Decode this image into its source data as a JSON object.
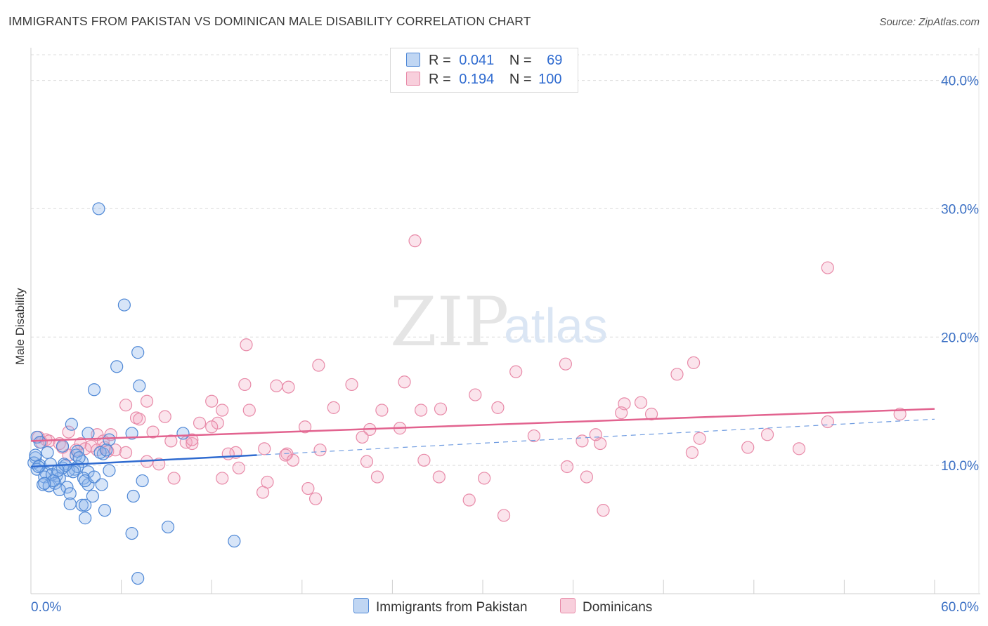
{
  "title": "IMMIGRANTS FROM PAKISTAN VS DOMINICAN MALE DISABILITY CORRELATION CHART",
  "source": "Source: ZipAtlas.com",
  "watermark": {
    "zip": "ZIP",
    "atlas": "atlas"
  },
  "legend": {
    "rows": [
      {
        "r_label": "R =",
        "r_value": "0.041",
        "n_label": "N =",
        "n_value": "69",
        "color": "#8db4ea"
      },
      {
        "r_label": "R =",
        "r_value": "0.194",
        "n_label": "N =",
        "n_value": "100",
        "color": "#f2a7bf"
      }
    ]
  },
  "bottom_legend": [
    {
      "label": "Immigrants from Pakistan",
      "color": "#8db4ea"
    },
    {
      "label": "Dominicans",
      "color": "#f2a7bf"
    }
  ],
  "colors": {
    "blue_point_fill": "rgba(141,180,234,0.35)",
    "blue_point_stroke": "#4f88d6",
    "pink_point_fill": "rgba(242,167,191,0.30)",
    "pink_point_stroke": "#e88aa8",
    "blue_line": "#2f6bd0",
    "pink_line": "#e2638f",
    "grid": "#dcdcdc",
    "axis_text": "#3a6fc4"
  },
  "chart_data": {
    "type": "scatter",
    "title": "IMMIGRANTS FROM PAKISTAN VS DOMINICAN MALE DISABILITY CORRELATION CHART",
    "xlabel": "",
    "ylabel": "Male Disability",
    "xlim": [
      0,
      60
    ],
    "ylim": [
      0,
      42
    ],
    "x_tick_labels": [
      "0.0%",
      "60.0%"
    ],
    "y_ticks": [
      10,
      20,
      30,
      40
    ],
    "y_tick_labels": [
      "10.0%",
      "20.0%",
      "30.0%",
      "40.0%"
    ],
    "grid": true,
    "legend_position": "top-center",
    "series": [
      {
        "name": "Immigrants from Pakistan",
        "color": "#4f88d6",
        "trend": {
          "x": [
            0,
            15
          ],
          "y": [
            9.9,
            10.8
          ],
          "dashed_extension_to": [
            60,
            13.6
          ]
        },
        "points": [
          [
            4.5,
            30.0
          ],
          [
            6.2,
            22.5
          ],
          [
            7.1,
            18.8
          ],
          [
            5.7,
            17.7
          ],
          [
            7.2,
            16.2
          ],
          [
            4.2,
            15.9
          ],
          [
            2.7,
            13.2
          ],
          [
            3.8,
            12.5
          ],
          [
            10.1,
            12.5
          ],
          [
            6.7,
            12.5
          ],
          [
            5.2,
            12.0
          ],
          [
            0.4,
            12.2
          ],
          [
            0.6,
            11.8
          ],
          [
            2.1,
            11.5
          ],
          [
            3.0,
            10.8
          ],
          [
            3.1,
            11.1
          ],
          [
            4.8,
            10.9
          ],
          [
            4.6,
            11.0
          ],
          [
            1.1,
            11.0
          ],
          [
            0.3,
            10.6
          ],
          [
            0.2,
            10.2
          ],
          [
            0.6,
            10.0
          ],
          [
            0.4,
            9.7
          ],
          [
            1.0,
            9.4
          ],
          [
            2.2,
            10.1
          ],
          [
            3.4,
            10.3
          ],
          [
            2.9,
            9.7
          ],
          [
            2.5,
            9.6
          ],
          [
            3.1,
            9.9
          ],
          [
            3.8,
            9.5
          ],
          [
            0.9,
            9.1
          ],
          [
            1.7,
            9.2
          ],
          [
            1.9,
            9.0
          ],
          [
            1.4,
            9.3
          ],
          [
            2.1,
            9.8
          ],
          [
            3.5,
            9.0
          ],
          [
            3.8,
            8.5
          ],
          [
            3.6,
            8.8
          ],
          [
            4.2,
            9.1
          ],
          [
            5.2,
            9.6
          ],
          [
            4.7,
            8.5
          ],
          [
            7.4,
            8.8
          ],
          [
            0.8,
            8.5
          ],
          [
            1.2,
            8.4
          ],
          [
            1.6,
            8.6
          ],
          [
            2.4,
            8.3
          ],
          [
            1.9,
            8.1
          ],
          [
            2.6,
            7.8
          ],
          [
            6.8,
            7.6
          ],
          [
            4.1,
            7.6
          ],
          [
            2.6,
            7.0
          ],
          [
            3.4,
            6.9
          ],
          [
            3.6,
            6.9
          ],
          [
            4.9,
            6.5
          ],
          [
            3.6,
            5.9
          ],
          [
            9.1,
            5.2
          ],
          [
            6.7,
            4.7
          ],
          [
            13.5,
            4.1
          ],
          [
            7.1,
            1.2
          ],
          [
            0.3,
            10.8
          ],
          [
            1.3,
            10.1
          ],
          [
            0.5,
            9.9
          ],
          [
            2.8,
            9.5
          ],
          [
            1.5,
            8.8
          ],
          [
            0.9,
            8.6
          ],
          [
            3.2,
            10.6
          ],
          [
            5.0,
            11.2
          ],
          [
            2.3,
            10.0
          ],
          [
            1.8,
            9.6
          ]
        ]
      },
      {
        "name": "Dominicans",
        "color": "#e88aa8",
        "trend": {
          "x": [
            0,
            60
          ],
          "y": [
            11.9,
            14.4
          ]
        },
        "points": [
          [
            25.5,
            27.5
          ],
          [
            52.9,
            25.4
          ],
          [
            14.3,
            19.4
          ],
          [
            19.1,
            17.8
          ],
          [
            32.2,
            17.3
          ],
          [
            35.5,
            17.9
          ],
          [
            44.0,
            18.0
          ],
          [
            42.9,
            17.1
          ],
          [
            14.2,
            16.3
          ],
          [
            16.3,
            16.2
          ],
          [
            17.1,
            16.1
          ],
          [
            21.3,
            16.3
          ],
          [
            24.8,
            16.5
          ],
          [
            29.5,
            15.5
          ],
          [
            12.0,
            15.0
          ],
          [
            7.7,
            15.0
          ],
          [
            6.3,
            14.7
          ],
          [
            20.1,
            14.5
          ],
          [
            23.3,
            14.3
          ],
          [
            14.5,
            14.3
          ],
          [
            12.7,
            14.3
          ],
          [
            25.9,
            14.3
          ],
          [
            27.2,
            14.4
          ],
          [
            31.0,
            14.5
          ],
          [
            39.4,
            14.8
          ],
          [
            40.5,
            14.9
          ],
          [
            41.2,
            14.0
          ],
          [
            39.2,
            14.1
          ],
          [
            8.9,
            13.8
          ],
          [
            7.0,
            13.7
          ],
          [
            7.2,
            13.6
          ],
          [
            11.2,
            13.3
          ],
          [
            12.4,
            13.3
          ],
          [
            12.0,
            13.0
          ],
          [
            18.2,
            13.0
          ],
          [
            22.5,
            12.8
          ],
          [
            24.5,
            12.9
          ],
          [
            52.9,
            13.4
          ],
          [
            57.7,
            14.0
          ],
          [
            8.1,
            12.6
          ],
          [
            4.4,
            12.4
          ],
          [
            2.5,
            12.6
          ],
          [
            0.5,
            12.2
          ],
          [
            1.0,
            12.0
          ],
          [
            0.7,
            11.8
          ],
          [
            1.2,
            11.9
          ],
          [
            1.9,
            11.7
          ],
          [
            2.1,
            11.4
          ],
          [
            3.3,
            11.7
          ],
          [
            3.6,
            11.3
          ],
          [
            4.0,
            11.5
          ],
          [
            4.4,
            11.2
          ],
          [
            4.9,
            11.4
          ],
          [
            5.1,
            11.1
          ],
          [
            4.8,
            11.9
          ],
          [
            5.6,
            11.2
          ],
          [
            9.3,
            11.9
          ],
          [
            10.3,
            11.8
          ],
          [
            10.7,
            11.7
          ],
          [
            13.6,
            11.0
          ],
          [
            15.5,
            11.3
          ],
          [
            17.0,
            10.9
          ],
          [
            19.2,
            11.2
          ],
          [
            22.0,
            12.2
          ],
          [
            33.4,
            12.3
          ],
          [
            36.6,
            11.9
          ],
          [
            37.8,
            11.7
          ],
          [
            37.5,
            12.4
          ],
          [
            44.4,
            12.1
          ],
          [
            48.9,
            12.4
          ],
          [
            47.6,
            11.4
          ],
          [
            51.0,
            11.3
          ],
          [
            43.9,
            11.0
          ],
          [
            5.3,
            12.4
          ],
          [
            2.5,
            10.8
          ],
          [
            6.3,
            11.0
          ],
          [
            7.7,
            10.3
          ],
          [
            8.5,
            10.1
          ],
          [
            13.1,
            10.9
          ],
          [
            16.9,
            10.8
          ],
          [
            17.4,
            10.4
          ],
          [
            22.3,
            10.3
          ],
          [
            26.1,
            10.4
          ],
          [
            13.8,
            9.8
          ],
          [
            15.7,
            8.7
          ],
          [
            15.4,
            7.9
          ],
          [
            18.4,
            8.2
          ],
          [
            18.9,
            7.4
          ],
          [
            23.0,
            9.1
          ],
          [
            27.1,
            9.1
          ],
          [
            29.1,
            7.3
          ],
          [
            30.1,
            9.0
          ],
          [
            31.4,
            6.1
          ],
          [
            35.6,
            9.9
          ],
          [
            36.9,
            9.1
          ],
          [
            38.0,
            6.5
          ],
          [
            9.5,
            9.0
          ],
          [
            12.7,
            9.0
          ],
          [
            10.7,
            12.0
          ],
          [
            3.0,
            11.2
          ]
        ]
      }
    ]
  }
}
